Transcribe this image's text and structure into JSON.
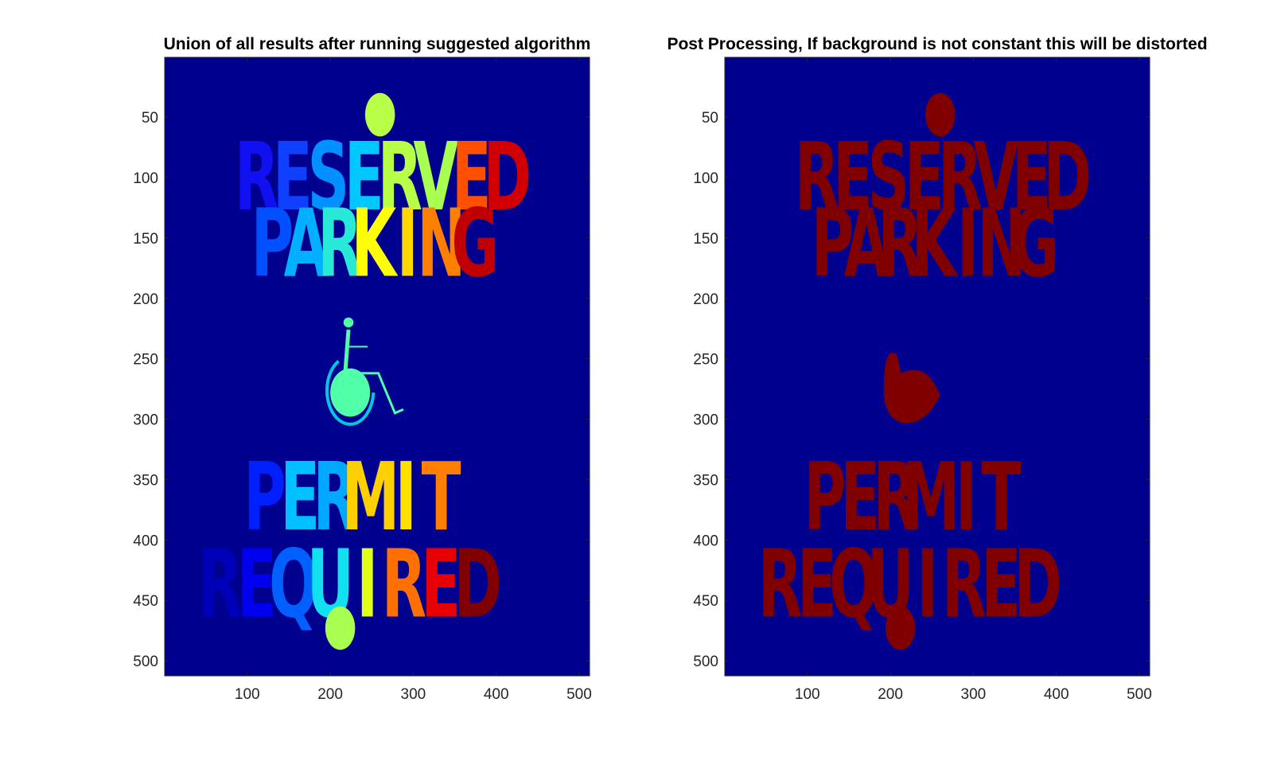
{
  "figure": {
    "background": "#ffffff",
    "colormap": "jet",
    "image_background_color": "#00008F"
  },
  "chart_data": [
    {
      "type": "heatmap",
      "title": "Union of all results after running suggested algorithm",
      "xlabel": "",
      "ylabel": "",
      "xlim": [
        0.5,
        512.5
      ],
      "ylim": [
        0.5,
        512.5
      ],
      "y_reversed": true,
      "xticks": [
        100,
        200,
        300,
        400,
        500
      ],
      "yticks": [
        50,
        100,
        150,
        200,
        250,
        300,
        350,
        400,
        450,
        500
      ],
      "grid": false,
      "legend": "none",
      "image_content": {
        "lines": [
          {
            "text": "RESERVED",
            "y_center": 100,
            "x_start": 90,
            "x_end": 435,
            "letter_colors": [
              "#1010F0",
              "#0F40FF",
              "#0090FF",
              "#00C8FF",
              "#B8FF48",
              "#A8FF50",
              "#FF5000",
              "#D00000"
            ]
          },
          {
            "text": "PARKING",
            "y_center": 155,
            "x_start": 110,
            "x_end": 395,
            "letter_colors": [
              "#0050FF",
              "#00B0FF",
              "#28E8D8",
              "#FFFF00",
              "#FFD800",
              "#FF8000",
              "#C00000"
            ]
          },
          {
            "text": "PERMIT",
            "y_center": 365,
            "x_start": 100,
            "x_end": 355,
            "letter_colors": [
              "#0020FF",
              "#00C0FF",
              "#00A8FF",
              "#FFD000",
              "#FFE000",
              "#FF8000"
            ]
          },
          {
            "text": "REQUIRED",
            "y_center": 437,
            "x_start": 45,
            "x_end": 400,
            "letter_colors": [
              "#0000B8",
              "#0000F0",
              "#0060FF",
              "#10E0F0",
              "#E0FF18",
              "#FF7000",
              "#E80000",
              "#800000"
            ]
          }
        ],
        "blobs": [
          {
            "x": 260,
            "y": 48,
            "r": 18,
            "color": "#B8FF48"
          },
          {
            "x": 212,
            "y": 473,
            "r": 18,
            "color": "#A8FF50"
          }
        ],
        "wheelchair_color": "#50FFA8"
      }
    },
    {
      "type": "heatmap",
      "title": "Post Processing, If background is not constant this will be distorted",
      "xlabel": "",
      "ylabel": "",
      "xlim": [
        0.5,
        512.5
      ],
      "ylim": [
        0.5,
        512.5
      ],
      "y_reversed": true,
      "xticks": [
        100,
        200,
        300,
        400,
        500
      ],
      "yticks": [
        50,
        100,
        150,
        200,
        250,
        300,
        350,
        400,
        450,
        500
      ],
      "grid": false,
      "legend": "none",
      "image_content": {
        "foreground_color": "#800000",
        "lines": [
          {
            "text": "RESERVED",
            "y_center": 100,
            "x_start": 90,
            "x_end": 435
          },
          {
            "text": "PARKING",
            "y_center": 155,
            "x_start": 110,
            "x_end": 395
          },
          {
            "text": "PERMIT",
            "y_center": 365,
            "x_start": 100,
            "x_end": 355
          },
          {
            "text": "REQUIRED",
            "y_center": 437,
            "x_start": 45,
            "x_end": 400
          }
        ],
        "blobs": [
          {
            "x": 260,
            "y": 48,
            "r": 18
          },
          {
            "x": 212,
            "y": 473,
            "r": 18
          }
        ],
        "seat_blob": {
          "x": 218,
          "y": 275,
          "r": 26
        }
      }
    }
  ]
}
